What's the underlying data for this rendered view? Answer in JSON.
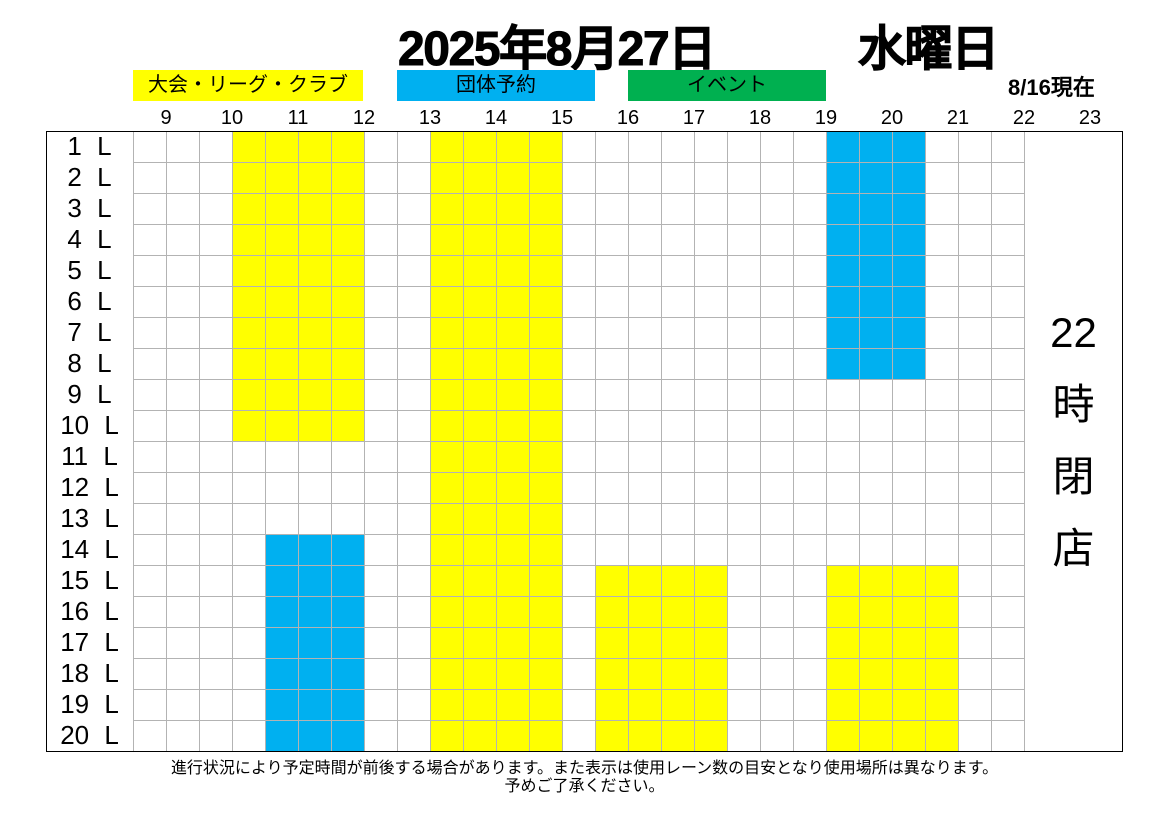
{
  "header": {
    "date": "2025年8月27日",
    "weekday": "水曜日",
    "as_of": "8/16現在"
  },
  "categories": [
    {
      "label": "大会・リーグ・クラブ",
      "color": "#FFFF00",
      "bookings": [
        {
          "start": 10,
          "end": 12,
          "lanes": [
            1,
            10
          ]
        },
        {
          "start": 13,
          "end": 15,
          "lanes": [
            1,
            20
          ]
        },
        {
          "start": 15.5,
          "end": 17.5,
          "lanes": [
            15,
            20
          ]
        },
        {
          "start": 19,
          "end": 21,
          "lanes": [
            15,
            20
          ]
        }
      ]
    },
    {
      "label": "団体予約",
      "color": "#00B0F0",
      "bookings": [
        {
          "start": 10.5,
          "end": 12,
          "lanes": [
            14,
            20
          ]
        },
        {
          "start": 19,
          "end": 20.5,
          "lanes": [
            1,
            8
          ]
        }
      ]
    },
    {
      "label": "イベント",
      "color": "#00B050",
      "bookings": []
    }
  ],
  "hours": [
    "9",
    "10",
    "11",
    "12",
    "13",
    "14",
    "15",
    "16",
    "17",
    "18",
    "19",
    "20",
    "21",
    "22",
    "23"
  ],
  "lane_labels": [
    "1 L",
    "2 L",
    "3 L",
    "4 L",
    "5 L",
    "6 L",
    "7 L",
    "8 L",
    "9 L",
    "10 L",
    "11 L",
    "12 L",
    "13 L",
    "14 L",
    "15 L",
    "16 L",
    "17 L",
    "18 L",
    "19 L",
    "20 L"
  ],
  "closed_notice": [
    "22",
    "時",
    "閉",
    "店"
  ],
  "footer": {
    "line1": "進行状況により予定時間が前後する場合があります。また表示は使用レーン数の目安となり使用場所は異なります。",
    "line2": "予めご了承ください。"
  }
}
